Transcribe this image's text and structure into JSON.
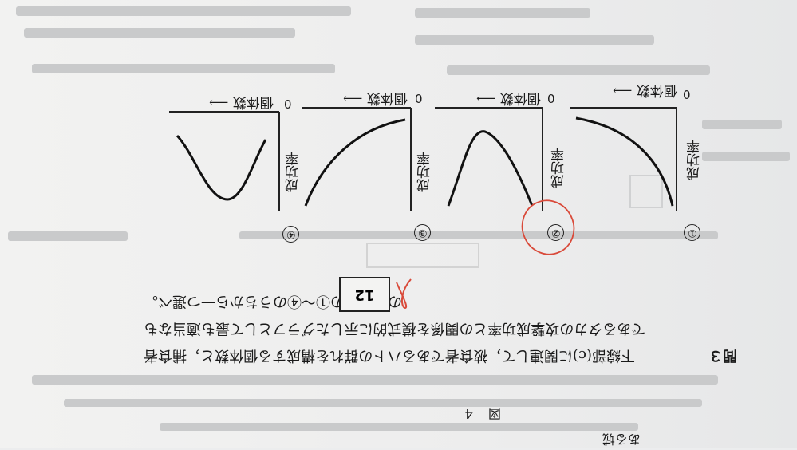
{
  "page": {
    "background": "#ecedee",
    "ink_color": "#1a1a1a",
    "pen_color": "#d94a3a"
  },
  "header": {
    "running_head": "ある城"
  },
  "figure": {
    "caption": "図　４",
    "graphs": [
      {
        "index": "①",
        "x_label": "個体数",
        "y_label": "成功率",
        "origin": "0",
        "shape": "concave-decreasing-curve"
      },
      {
        "index": "②",
        "x_label": "個体数",
        "y_label": "成功率",
        "origin": "0",
        "shape": "hump"
      },
      {
        "index": "③",
        "x_label": "個体数",
        "y_label": "成功率",
        "origin": "0",
        "shape": "saturating-curve"
      },
      {
        "index": "④",
        "x_label": "個体数",
        "y_label": "成功率",
        "origin": "0",
        "shape": "s-wave"
      }
    ]
  },
  "question": {
    "label": "問３",
    "line1": "下線部(c)に関連して，被食者であるハトの群れを構成する個体数と，捕食者",
    "line2": "であるタカの攻撃成功率との関係を模式的に示したグラフとして最も適当なも",
    "line3": "のを，次の①～④のうちから一つ選べ。",
    "answer_box": "12"
  }
}
